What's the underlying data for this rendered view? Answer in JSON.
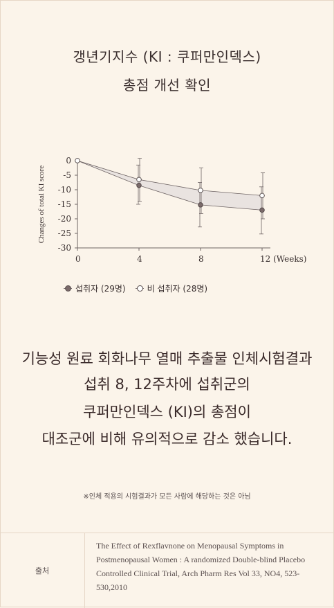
{
  "title": {
    "line1": "갱년기지수 (KI : 쿠퍼만인덱스)",
    "line2": "총점 개선 확인"
  },
  "chart_data": {
    "type": "line",
    "ylabel": "Changes of total KI score",
    "x": [
      0,
      4,
      8,
      12
    ],
    "x_tick_labels": [
      "0",
      "4",
      "8",
      "12 (Weeks)"
    ],
    "y_ticks": [
      0,
      -5,
      -10,
      -15,
      -20,
      -25,
      -30
    ],
    "ylim": [
      -30,
      0
    ],
    "series": [
      {
        "name": "섭취자 (29명)",
        "marker": "filled",
        "values": [
          0,
          -8.5,
          -15.2,
          -17.0
        ],
        "err_high": [
          0,
          -1.5,
          -7.5,
          -9.0
        ],
        "err_low": [
          0,
          -15.0,
          -22.8,
          -25.2
        ]
      },
      {
        "name": "비 섭취자 (28명)",
        "marker": "open",
        "values": [
          0,
          -6.5,
          -10.2,
          -12.0
        ],
        "err_high": [
          0,
          0.8,
          -2.5,
          -4.2
        ],
        "err_low": [
          0,
          -14.0,
          -18.2,
          -20.0
        ]
      }
    ],
    "colors": {
      "line": "#6d6363",
      "fill": "#e9e3e0",
      "filled_marker": "#7a6a6a"
    }
  },
  "headline": {
    "line1": "기능성 원료 회화나무 열매 추출물 인체시험결과",
    "line2": "섭취 8, 12주차에 섭취군의",
    "line3": "쿠퍼만인덱스 (KI)의 총점이",
    "line4": "대조군에 비해 유의적으로 감소 했습니다."
  },
  "note": "※인체 적용의 시험결과가 모든 사람에 해당하는 것은 아님",
  "source": {
    "label": "출처",
    "text": "The Effect of Rexflavnone on Menopausal Symptoms in Postmenopausal Women : A randomized Double-blind Placebo Controlled Clinical Trial, Arch Pharm Res Vol 33, NO4, 523-530,2010"
  }
}
